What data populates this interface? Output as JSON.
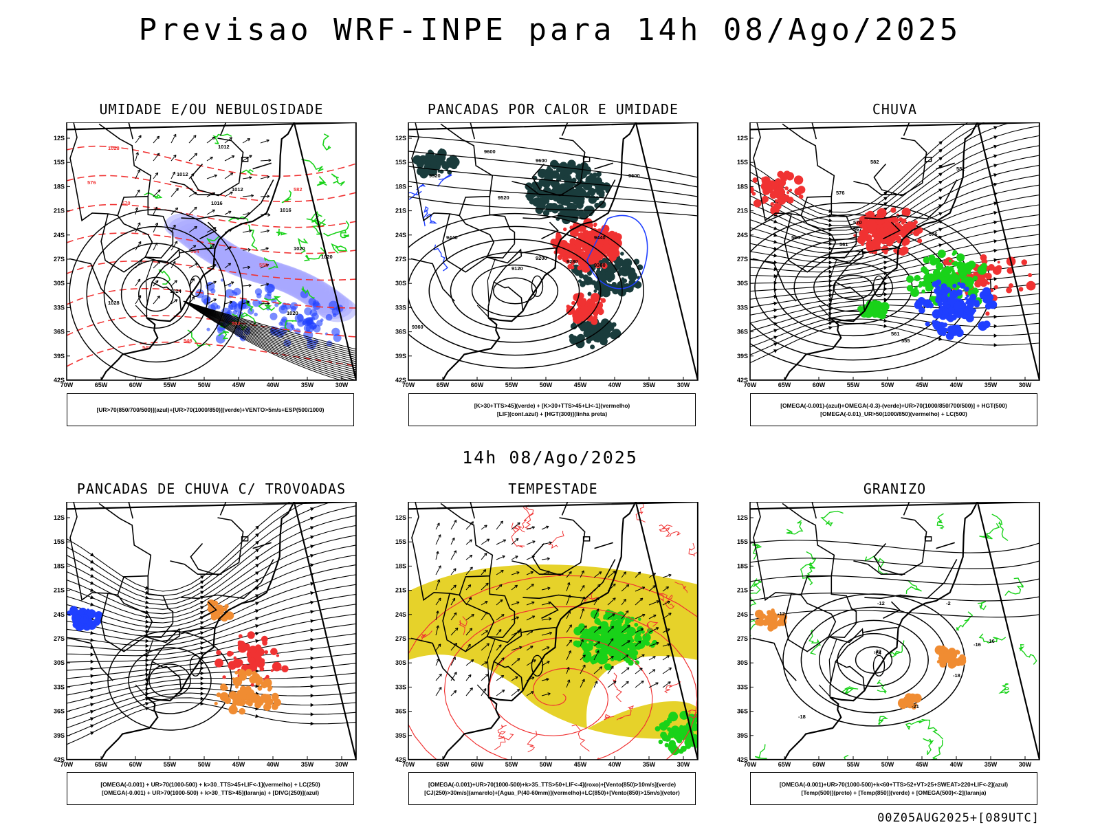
{
  "header": {
    "title": "Previsao WRF-INPE  para 14h 08/Ago/2025",
    "mid_title": "14h 08/Ago/2025",
    "footer": "00Z05AUG2025+[089UTC]"
  },
  "axes": {
    "lat_labels": [
      "12S",
      "15S",
      "18S",
      "21S",
      "24S",
      "27S",
      "30S",
      "33S",
      "36S",
      "39S",
      "42S"
    ],
    "lon_labels": [
      "70W",
      "65W",
      "60W",
      "55W",
      "50W",
      "45W",
      "40W",
      "35W",
      "30W"
    ]
  },
  "panels": [
    {
      "id": "umidade",
      "title": "UMIDADE E/OU NEBULOSIDADE",
      "legend": [
        "[UR>70(850/700/500)](azul)+[UR>70(1000/850)](verde)+VENTO>5m/s+ESP(500/1000)"
      ],
      "contour_labels": [
        "1012",
        "1012",
        "1012",
        "1016",
        "1016",
        "1020",
        "1020",
        "1020",
        "1024",
        "1028",
        "1028",
        "576",
        "570",
        "564",
        "558",
        "552",
        "546",
        "540",
        "582"
      ]
    },
    {
      "id": "pancadas-calor",
      "title": "PANCADAS POR CALOR E UMIDADE",
      "legend": [
        "[K>30+TTS>45](verde) + [K>30+TTS>45+LI<-1](vermelho)",
        "[LIF](cont.azul) + [HGT(300)](linha preta)"
      ],
      "contour_labels": [
        "9600",
        "9600",
        "9600",
        "9520",
        "9520",
        "9440",
        "9440",
        "9360",
        "9280",
        "9200",
        "9120",
        "9360"
      ]
    },
    {
      "id": "chuva",
      "title": "CHUVA",
      "legend": [
        "[OMEGA(-0.001)-(azul)+OMEGA(-0.3)-(verde)+UR>70(1000/850/700/500)] + HGT(500)",
        "[OMEGA(-0.01)_UR>50(1000/850)(vermelho) + LC(500)"
      ],
      "contour_labels": [
        "582",
        "582",
        "576",
        "576",
        "570",
        "567",
        "561",
        "561",
        "555",
        "564"
      ]
    },
    {
      "id": "trovoadas",
      "title": "PANCADAS DE CHUVA C/ TROVOADAS",
      "legend": [
        "[OMEGA(-0.001) + UR>70(1000-500) + k>30_TTS>45+LIF<-1](vermelho) + LC(250)",
        "[OMEGA(-0.001) + UR>70(1000-500) + k>30_TTS>45](laranja) + [DIVG(250)](azul)"
      ],
      "contour_labels": []
    },
    {
      "id": "tempestade",
      "title": "TEMPESTADE",
      "legend": [
        "[OMEGA(-0.001)+UR>70(1000-500)+k>35_TTS>50+LIF<-4](roxo)+[Vento(850)>10m/s](verde)",
        "[CJ(250)>30m/s](amarelo)+[Agua_P(40-60mm)](vermelho)+LC(850)+[Vento(850)>15m/s](vetor)"
      ],
      "contour_labels": []
    },
    {
      "id": "granizo",
      "title": "GRANIZO",
      "legend": [
        "[OMEGA(-0.001)+UR>70(1000-500)+k<60+TTS>52+VT>25+SWEAT>220+LIF<-2](azul)",
        "[Temp(500)](preto) + [Temp(850)](verde) + [OMEGA(500)<-2](laranja)"
      ],
      "contour_labels": [
        "-12",
        "-12",
        "-16",
        "-16",
        "-18",
        "-20",
        "-24",
        "-21",
        "-18",
        "-2"
      ]
    }
  ],
  "colors": {
    "blue": "#1f3fff",
    "green": "#19d219",
    "red": "#f03232",
    "dark_teal": "#1a3c3c",
    "yellow": "#e6d22a",
    "orange": "#f08c32",
    "lavender": "#8c8cff"
  }
}
